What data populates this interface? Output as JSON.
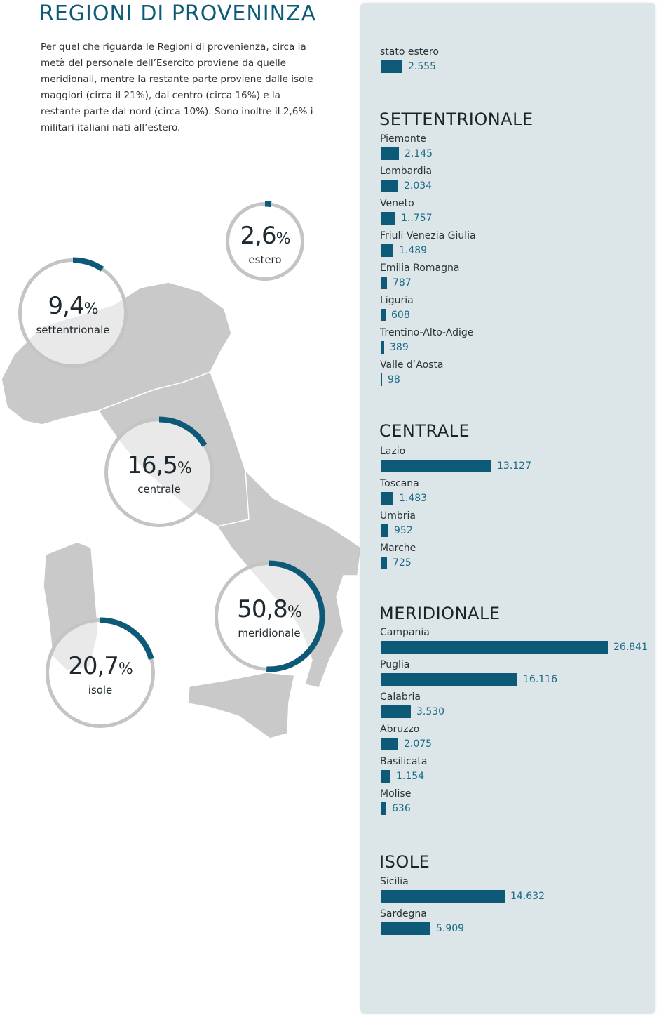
{
  "title": "REGIONI DI PROVENINZA",
  "intro": "Per quel che riguarda le Regioni di provenienza, circa la metà del personale dell’Esercito proviene da quelle meridionali, mentre la restante parte proviene dalle isole maggiori (circa il 21%), dal centro (circa 16%) e la restante parte dal nord (circa 10%). Sono inoltre il 2,6% i militari italiani nati all’estero.",
  "colors": {
    "accent": "#0d5a78",
    "ring_track": "#c4c4c4",
    "panel_bg": "#dce6e8",
    "map_fill": "#c9c9c9"
  },
  "rings": [
    {
      "id": "estero",
      "percent_num": "2,6",
      "percent_sign": "%",
      "label": "estero",
      "value": 2.6
    },
    {
      "id": "settentrionale",
      "percent_num": "9,4",
      "percent_sign": "%",
      "label": "settentrionale",
      "value": 9.4
    },
    {
      "id": "centrale",
      "percent_num": "16,5",
      "percent_sign": "%",
      "label": "centrale",
      "value": 16.5
    },
    {
      "id": "meridionale",
      "percent_num": "50,8",
      "percent_sign": "%",
      "label": "meridionale",
      "value": 50.8
    },
    {
      "id": "isole",
      "percent_num": "20,7",
      "percent_sign": "%",
      "label": "isole",
      "value": 20.7
    }
  ],
  "chart_data": {
    "type": "bar",
    "orientation": "horizontal",
    "groups": [
      {
        "title": "",
        "items": [
          {
            "name": "stato estero",
            "value": 2555,
            "label": "2.555"
          }
        ]
      },
      {
        "title": "SETTENTRIONALE",
        "items": [
          {
            "name": "Piemonte",
            "value": 2145,
            "label": "2.145"
          },
          {
            "name": "Lombardia",
            "value": 2034,
            "label": "2.034"
          },
          {
            "name": "Veneto",
            "value": 1757,
            "label": "1..757"
          },
          {
            "name": "Friuli Venezia Giulia",
            "value": 1489,
            "label": "1.489"
          },
          {
            "name": "Emilia Romagna",
            "value": 787,
            "label": "787"
          },
          {
            "name": "Liguria",
            "value": 608,
            "label": "608"
          },
          {
            "name": "Trentino-Alto-Adige",
            "value": 389,
            "label": "389"
          },
          {
            "name": "Valle d’Aosta",
            "value": 98,
            "label": "98"
          }
        ]
      },
      {
        "title": "CENTRALE",
        "items": [
          {
            "name": "Lazio",
            "value": 13127,
            "label": "13.127"
          },
          {
            "name": "Toscana",
            "value": 1483,
            "label": "1.483"
          },
          {
            "name": "Umbria",
            "value": 952,
            "label": "952"
          },
          {
            "name": "Marche",
            "value": 725,
            "label": "725"
          }
        ]
      },
      {
        "title": "MERIDIONALE",
        "items": [
          {
            "name": "Campania",
            "value": 26841,
            "label": "26.841"
          },
          {
            "name": "Puglia",
            "value": 16116,
            "label": "16.116"
          },
          {
            "name": "Calabria",
            "value": 3530,
            "label": "3.530"
          },
          {
            "name": "Abruzzo",
            "value": 2075,
            "label": "2.075"
          },
          {
            "name": "Basilicata",
            "value": 1154,
            "label": "1.154"
          },
          {
            "name": "Molise",
            "value": 636,
            "label": "636"
          }
        ]
      },
      {
        "title": "ISOLE",
        "items": [
          {
            "name": "Sicilia",
            "value": 14632,
            "label": "14.632"
          },
          {
            "name": "Sardegna",
            "value": 5909,
            "label": "5.909"
          }
        ]
      }
    ]
  }
}
